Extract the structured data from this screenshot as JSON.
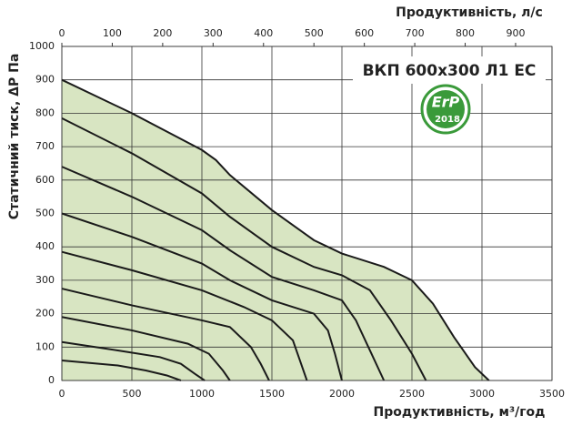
{
  "chart_data": {
    "type": "line",
    "title": "ВКП 600x300 Л1 ЕС",
    "xlabel": "Продуктивність, м³/год",
    "x2label": "Продуктивність, л/с",
    "ylabel": "Статичний тиск, ΔP Па",
    "badge": {
      "text": "ErP",
      "year": "2018"
    },
    "xlim": [
      0,
      3500
    ],
    "xticks": [
      0,
      500,
      1000,
      1500,
      2000,
      2500,
      3000,
      3500
    ],
    "x2lim": [
      0,
      972.2
    ],
    "x2ticks": [
      0,
      100,
      200,
      300,
      400,
      500,
      600,
      700,
      800,
      900
    ],
    "ylim": [
      0,
      1000
    ],
    "yticks": [
      0,
      100,
      200,
      300,
      400,
      500,
      600,
      700,
      800,
      900,
      1000
    ],
    "grid": true,
    "fill": "#d8e5c2",
    "line_color": "#1a1a1a",
    "series": [
      {
        "x": [
          0,
          500,
          1000,
          1100,
          1200,
          1500,
          1800,
          2000,
          2300,
          2500,
          2650,
          2800,
          2950,
          3050
        ],
        "values": [
          900,
          800,
          690,
          660,
          615,
          510,
          420,
          380,
          340,
          300,
          230,
          130,
          40,
          0
        ]
      },
      {
        "x": [
          0,
          500,
          1000,
          1200,
          1500,
          1800,
          2000,
          2200,
          2350,
          2500,
          2600
        ],
        "values": [
          785,
          680,
          560,
          490,
          400,
          340,
          315,
          270,
          180,
          80,
          0
        ]
      },
      {
        "x": [
          0,
          500,
          1000,
          1200,
          1500,
          1800,
          2000,
          2100,
          2200,
          2300
        ],
        "values": [
          640,
          550,
          450,
          390,
          310,
          270,
          240,
          180,
          90,
          0
        ]
      },
      {
        "x": [
          0,
          500,
          1000,
          1200,
          1500,
          1800,
          1900,
          1950,
          2000
        ],
        "values": [
          500,
          430,
          350,
          300,
          240,
          200,
          150,
          80,
          0
        ]
      },
      {
        "x": [
          0,
          500,
          1000,
          1300,
          1500,
          1650,
          1700,
          1750
        ],
        "values": [
          385,
          330,
          270,
          220,
          180,
          120,
          60,
          0
        ]
      },
      {
        "x": [
          0,
          500,
          1000,
          1200,
          1350,
          1420,
          1480
        ],
        "values": [
          275,
          225,
          180,
          160,
          100,
          50,
          0
        ]
      },
      {
        "x": [
          0,
          500,
          900,
          1050,
          1150,
          1200
        ],
        "values": [
          190,
          150,
          110,
          80,
          30,
          0
        ]
      },
      {
        "x": [
          0,
          400,
          700,
          850,
          950,
          1020
        ],
        "values": [
          115,
          90,
          70,
          50,
          20,
          0
        ]
      },
      {
        "x": [
          0,
          400,
          600,
          750,
          850
        ],
        "values": [
          60,
          45,
          30,
          15,
          0
        ]
      }
    ]
  }
}
